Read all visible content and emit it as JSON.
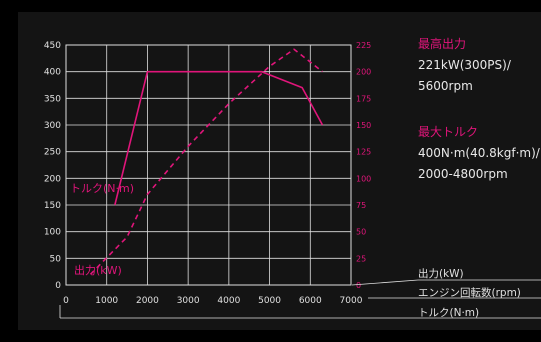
{
  "chart_data": {
    "type": "line",
    "x_ticks": [
      0,
      1000,
      2000,
      3000,
      4000,
      5000,
      6000,
      7000
    ],
    "left_ticks": [
      0,
      50,
      100,
      150,
      200,
      250,
      300,
      350,
      400,
      450
    ],
    "right_ticks": [
      0,
      25,
      50,
      75,
      100,
      125,
      150,
      175,
      200,
      225
    ],
    "xlim": [
      0,
      7000
    ],
    "left_ylim": [
      0,
      450
    ],
    "right_ylim": [
      0,
      225
    ],
    "series": [
      {
        "name": "トルク(N·m)",
        "axis": "left",
        "style": "solid",
        "x": [
          1200,
          1600,
          2000,
          4000,
          4800,
          5800,
          6300
        ],
        "y": [
          150,
          275,
          400,
          400,
          400,
          370,
          300
        ]
      },
      {
        "name": "出力(kW)",
        "axis": "right",
        "style": "dashed",
        "x": [
          600,
          1500,
          2000,
          3000,
          4000,
          5000,
          5600,
          6300
        ],
        "y": [
          10,
          45,
          85,
          130,
          170,
          205,
          221,
          200
        ]
      }
    ],
    "inline_labels": [
      "トルク(N·m)",
      "出力(kW)"
    ],
    "legend": [
      "出力(kW)",
      "エンジン回転数(rpm)",
      "トルク(N·m)"
    ],
    "colors": {
      "line": "#e0157a",
      "grid": "#e0e0e0",
      "text": "#e0e0e0"
    }
  },
  "specs": [
    {
      "heading": "最高出力",
      "lines": [
        "221kW(300PS)/",
        "5600rpm"
      ]
    },
    {
      "heading": "最大トルク",
      "lines": [
        "400N·m(40.8kgf·m)/",
        "2000-4800rpm"
      ]
    }
  ]
}
